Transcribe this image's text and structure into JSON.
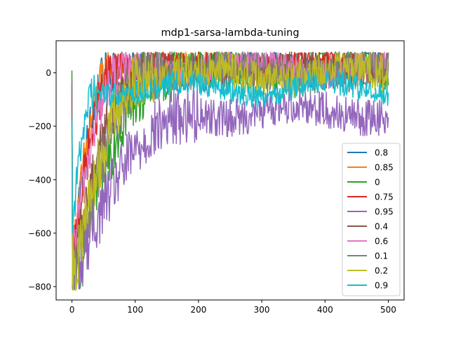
{
  "chart_data": {
    "type": "line",
    "title": "mdp1-sarsa-lambda-tuning",
    "xlabel": "",
    "ylabel": "",
    "xlim": [
      -25,
      525
    ],
    "ylim": [
      -850,
      120
    ],
    "x_ticks": [
      0,
      100,
      200,
      300,
      400,
      500
    ],
    "y_ticks": [
      0,
      -200,
      -400,
      -600,
      -800
    ],
    "x_tick_labels": [
      "0",
      "100",
      "200",
      "300",
      "400",
      "500"
    ],
    "y_tick_labels": [
      "0",
      "−200",
      "−400",
      "−600",
      "−800"
    ],
    "legend_position": "lower right",
    "episodes": 500,
    "series": [
      {
        "name": "0.8",
        "color": "#1f77b4",
        "start": -100,
        "converge": 45,
        "rise_episodes": 70,
        "noise": 60,
        "start_dip": -700,
        "plateau": 35
      },
      {
        "name": "0.85",
        "color": "#ff7f0e",
        "start": -100,
        "converge": 45,
        "rise_episodes": 70,
        "noise": 55,
        "start_dip": -700,
        "plateau": 35
      },
      {
        "name": "0",
        "color": "#2ca02c",
        "start": -40,
        "converge": 40,
        "rise_episodes": 160,
        "noise": 80,
        "start_dip": -810,
        "plateau": 30
      },
      {
        "name": "0.75",
        "color": "#d62728",
        "start": -100,
        "converge": 50,
        "rise_episodes": 80,
        "noise": 55,
        "start_dip": -720,
        "plateau": 40
      },
      {
        "name": "0.95",
        "color": "#9467bd",
        "start": -100,
        "converge": -130,
        "rise_episodes": 200,
        "noise": 70,
        "start_dip": -780,
        "plateau": -130
      },
      {
        "name": "0.4",
        "color": "#8c564b",
        "start": -100,
        "converge": 40,
        "rise_episodes": 120,
        "noise": 65,
        "start_dip": -760,
        "plateau": 30
      },
      {
        "name": "0.6",
        "color": "#e377c2",
        "start": -100,
        "converge": 40,
        "rise_episodes": 90,
        "noise": 55,
        "start_dip": -680,
        "plateau": 30
      },
      {
        "name": "0.1",
        "color": "#7f7f7f",
        "start": -100,
        "converge": 30,
        "rise_episodes": 140,
        "noise": 70,
        "start_dip": -800,
        "plateau": 20
      },
      {
        "name": "0.2",
        "color": "#bcbd22",
        "start": -100,
        "converge": 20,
        "rise_episodes": 130,
        "noise": 70,
        "start_dip": -790,
        "plateau": 10
      },
      {
        "name": "0.9",
        "color": "#17becf",
        "start": -100,
        "converge": -40,
        "rise_episodes": 40,
        "noise": 45,
        "start_dip": -600,
        "plateau": -50
      }
    ]
  }
}
